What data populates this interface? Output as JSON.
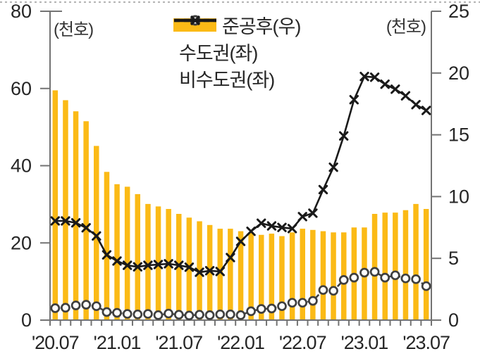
{
  "chart": {
    "unit_left": "(천호)",
    "unit_right": "(천호)",
    "colors": {
      "bar": "#FBBA16",
      "capital_line": "#3F3F3F",
      "noncapital_line": "#1A1A1A",
      "axis": "#737373",
      "tick_label": "#262626",
      "top_border": "#B3B3B3"
    }
  },
  "legend": {
    "items": [
      {
        "label": "준공후(우)",
        "marker": "bar"
      },
      {
        "label": "수도권(좌)",
        "marker": "dashed-circle"
      },
      {
        "label": "비수도권(좌)",
        "marker": "solid-x"
      }
    ]
  },
  "chart_data": {
    "type": "bar+line",
    "title": "",
    "xlabel": "",
    "ylabel_left": "(천호)",
    "ylabel_right": "(천호)",
    "grid": false,
    "legend_position": "top-center",
    "x": [
      "2020.07",
      "2020.08",
      "2020.09",
      "2020.10",
      "2020.11",
      "2020.12",
      "2021.01",
      "2021.02",
      "2021.03",
      "2021.04",
      "2021.05",
      "2021.06",
      "2021.07",
      "2021.08",
      "2021.09",
      "2021.10",
      "2021.11",
      "2021.12",
      "2022.01",
      "2022.02",
      "2022.03",
      "2022.04",
      "2022.05",
      "2022.06",
      "2022.07",
      "2022.08",
      "2022.09",
      "2022.10",
      "2022.11",
      "2022.12",
      "2023.01",
      "2023.02",
      "2023.03",
      "2023.04",
      "2023.05",
      "2023.06",
      "2023.07"
    ],
    "x_tick_labels": [
      "'20.07",
      "'21.01",
      "'21.07",
      "'22.01",
      "'22.07",
      "'23.01",
      "'23.07"
    ],
    "x_tick_indices": [
      0,
      6,
      12,
      18,
      24,
      30,
      36
    ],
    "axes": {
      "left": {
        "min": 0,
        "max": 80,
        "ticks": [
          0,
          20,
          40,
          60,
          80
        ]
      },
      "right": {
        "min": 0,
        "max": 25,
        "ticks": [
          0,
          5,
          10,
          15,
          20,
          25
        ]
      }
    },
    "series": [
      {
        "name": "준공후(우)",
        "type": "bar",
        "axis": "right",
        "color": "#FBBA16",
        "values": [
          18.6,
          17.8,
          16.9,
          16.1,
          14.1,
          12.0,
          11.0,
          10.8,
          10.2,
          9.4,
          9.2,
          9.0,
          8.6,
          8.3,
          8.0,
          7.7,
          7.4,
          7.4,
          7.2,
          7.1,
          6.9,
          7.0,
          6.8,
          7.1,
          7.4,
          7.3,
          7.2,
          7.1,
          7.1,
          7.5,
          7.5,
          8.6,
          8.7,
          8.7,
          8.9,
          9.4,
          9.0
        ]
      },
      {
        "name": "수도권(좌)",
        "type": "line",
        "axis": "left",
        "style": "dashed",
        "marker": "circle",
        "color": "#3F3F3F",
        "values": [
          3.1,
          3.2,
          3.8,
          4.0,
          3.6,
          2.1,
          1.9,
          1.6,
          1.5,
          1.6,
          1.3,
          1.7,
          1.4,
          1.2,
          1.4,
          1.3,
          1.5,
          1.5,
          1.3,
          2.3,
          2.9,
          3.0,
          3.6,
          4.5,
          4.5,
          5.0,
          7.8,
          7.6,
          10.4,
          11.0,
          12.3,
          12.5,
          11.0,
          11.6,
          10.8,
          10.6,
          8.8
        ]
      },
      {
        "name": "비수도권(좌)",
        "type": "line",
        "axis": "left",
        "style": "solid",
        "marker": "x",
        "color": "#1A1A1A",
        "values": [
          25.7,
          25.7,
          25.2,
          23.9,
          21.8,
          16.9,
          15.3,
          14.2,
          13.8,
          14.2,
          14.4,
          14.6,
          14.2,
          13.7,
          12.4,
          12.8,
          12.6,
          16.2,
          20.4,
          23.0,
          25.1,
          24.4,
          24.0,
          23.7,
          26.8,
          27.7,
          33.8,
          39.6,
          47.7,
          57.1,
          63.1,
          62.9,
          61.1,
          59.8,
          58.1,
          55.8,
          54.3
        ]
      }
    ]
  }
}
